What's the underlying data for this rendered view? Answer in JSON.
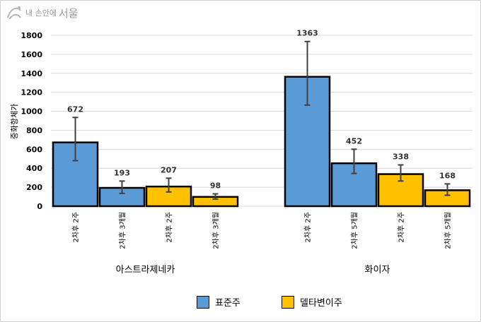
{
  "logo": {
    "small_text": "내 손안에",
    "big_text": "서울"
  },
  "chart_data": {
    "type": "bar",
    "ylabel": "중화항체가",
    "ylim": [
      0,
      1800
    ],
    "yticks": [
      0,
      200,
      400,
      600,
      800,
      1000,
      1200,
      1400,
      1600,
      1800
    ],
    "grid": true,
    "legend_placement": "bottom",
    "groups": [
      {
        "name": "아스트라제네카",
        "bars": [
          {
            "category": "2차후 2주",
            "value": 672,
            "error_low": 480,
            "error_high": 935,
            "series": "표준주"
          },
          {
            "category": "2차후 3개월",
            "value": 193,
            "error_low": 135,
            "error_high": 265,
            "series": "표준주"
          },
          {
            "category": "2차후 2주",
            "value": 207,
            "error_low": 150,
            "error_high": 295,
            "series": "델타변이주"
          },
          {
            "category": "2차후 3개월",
            "value": 98,
            "error_low": 75,
            "error_high": 130,
            "series": "델타변이주"
          }
        ]
      },
      {
        "name": "화이자",
        "bars": [
          {
            "category": "2차후 2주",
            "value": 1363,
            "error_low": 1065,
            "error_high": 1735,
            "series": "표준주"
          },
          {
            "category": "2차후 5개월",
            "value": 452,
            "error_low": 345,
            "error_high": 600,
            "series": "표준주"
          },
          {
            "category": "2차후 2주",
            "value": 338,
            "error_low": 265,
            "error_high": 435,
            "series": "델타변이주"
          },
          {
            "category": "2차후 5개월",
            "value": 168,
            "error_low": 115,
            "error_high": 235,
            "series": "델타변이주"
          }
        ]
      }
    ],
    "series": [
      {
        "name": "표준주",
        "color": "#5B9BD5"
      },
      {
        "name": "델타변이주",
        "color": "#FFC000"
      }
    ]
  }
}
